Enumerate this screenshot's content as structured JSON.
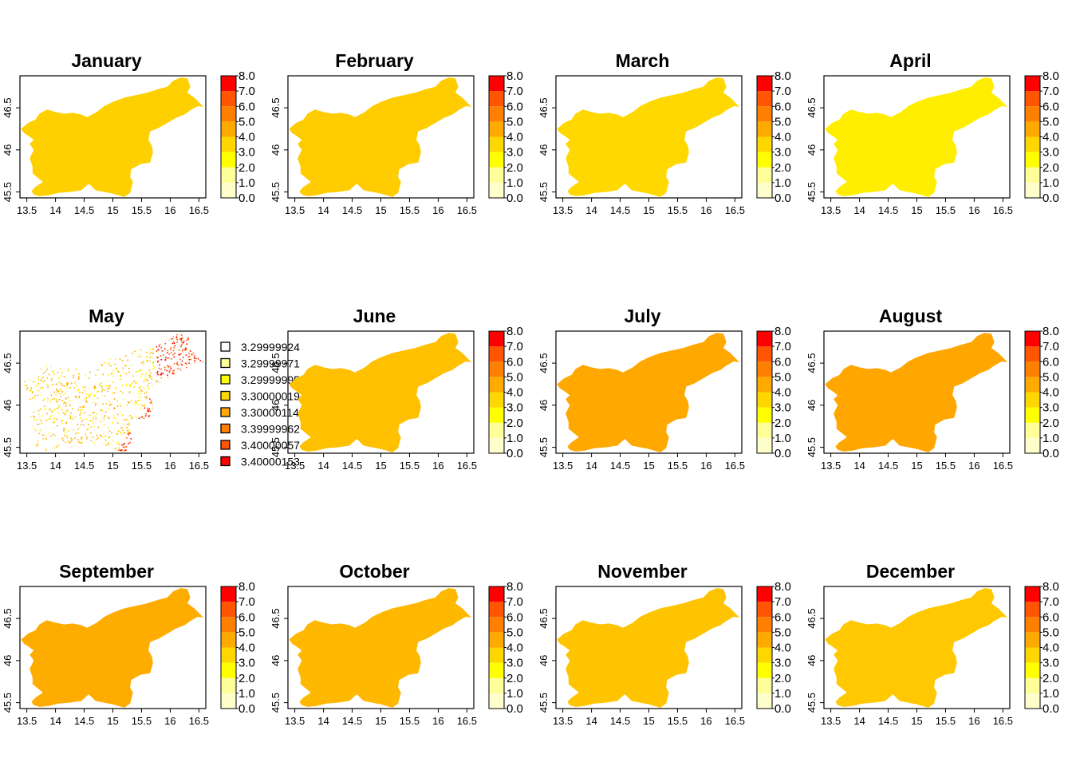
{
  "x_ticks": [
    "13.5",
    "14",
    "14.5",
    "15",
    "15.5",
    "16",
    "16.5"
  ],
  "y_ticks": [
    "45.5",
    "46",
    "46.5"
  ],
  "colorbar_ticks": [
    "0.0",
    "1.0",
    "2.0",
    "3.0",
    "4.0",
    "5.0",
    "6.0",
    "7.0",
    "8.0"
  ],
  "colorbar_colors": [
    "#FFFFCC",
    "#FFFF99",
    "#FFFF00",
    "#FFD700",
    "#FFAA00",
    "#FF8000",
    "#FF5500",
    "#FF0000"
  ],
  "panels": [
    {
      "title": "January",
      "fill": "#FFD000",
      "mean_value": 3.4
    },
    {
      "title": "February",
      "fill": "#FFCC00",
      "mean_value": 3.5
    },
    {
      "title": "March",
      "fill": "#FFD800",
      "mean_value": 3.2
    },
    {
      "title": "April",
      "fill": "#FFEE00",
      "mean_value": 2.8
    },
    {
      "title": "May",
      "fill": "#FFFFFF",
      "discrete": true
    },
    {
      "title": "June",
      "fill": "#FFC000",
      "mean_value": 3.7
    },
    {
      "title": "July",
      "fill": "#FFA800",
      "mean_value": 4.3
    },
    {
      "title": "August",
      "fill": "#FFA600",
      "mean_value": 4.4
    },
    {
      "title": "September",
      "fill": "#FFAC00",
      "mean_value": 4.2
    },
    {
      "title": "October",
      "fill": "#FFB800",
      "mean_value": 3.9
    },
    {
      "title": "November",
      "fill": "#FFC400",
      "mean_value": 3.6
    },
    {
      "title": "December",
      "fill": "#FFC800",
      "mean_value": 3.5
    }
  ],
  "may_legend": {
    "labels": [
      "3.29999924",
      "3.29999971",
      "3.29999995",
      "3.30000019",
      "3.30000114",
      "3.39999962",
      "3.40000057",
      "3.40000153"
    ],
    "colors": [
      "#FFFFFF",
      "#FFFF99",
      "#FFFF00",
      "#FFD700",
      "#FFAA00",
      "#FF8000",
      "#FF5500",
      "#FF0000"
    ]
  }
}
